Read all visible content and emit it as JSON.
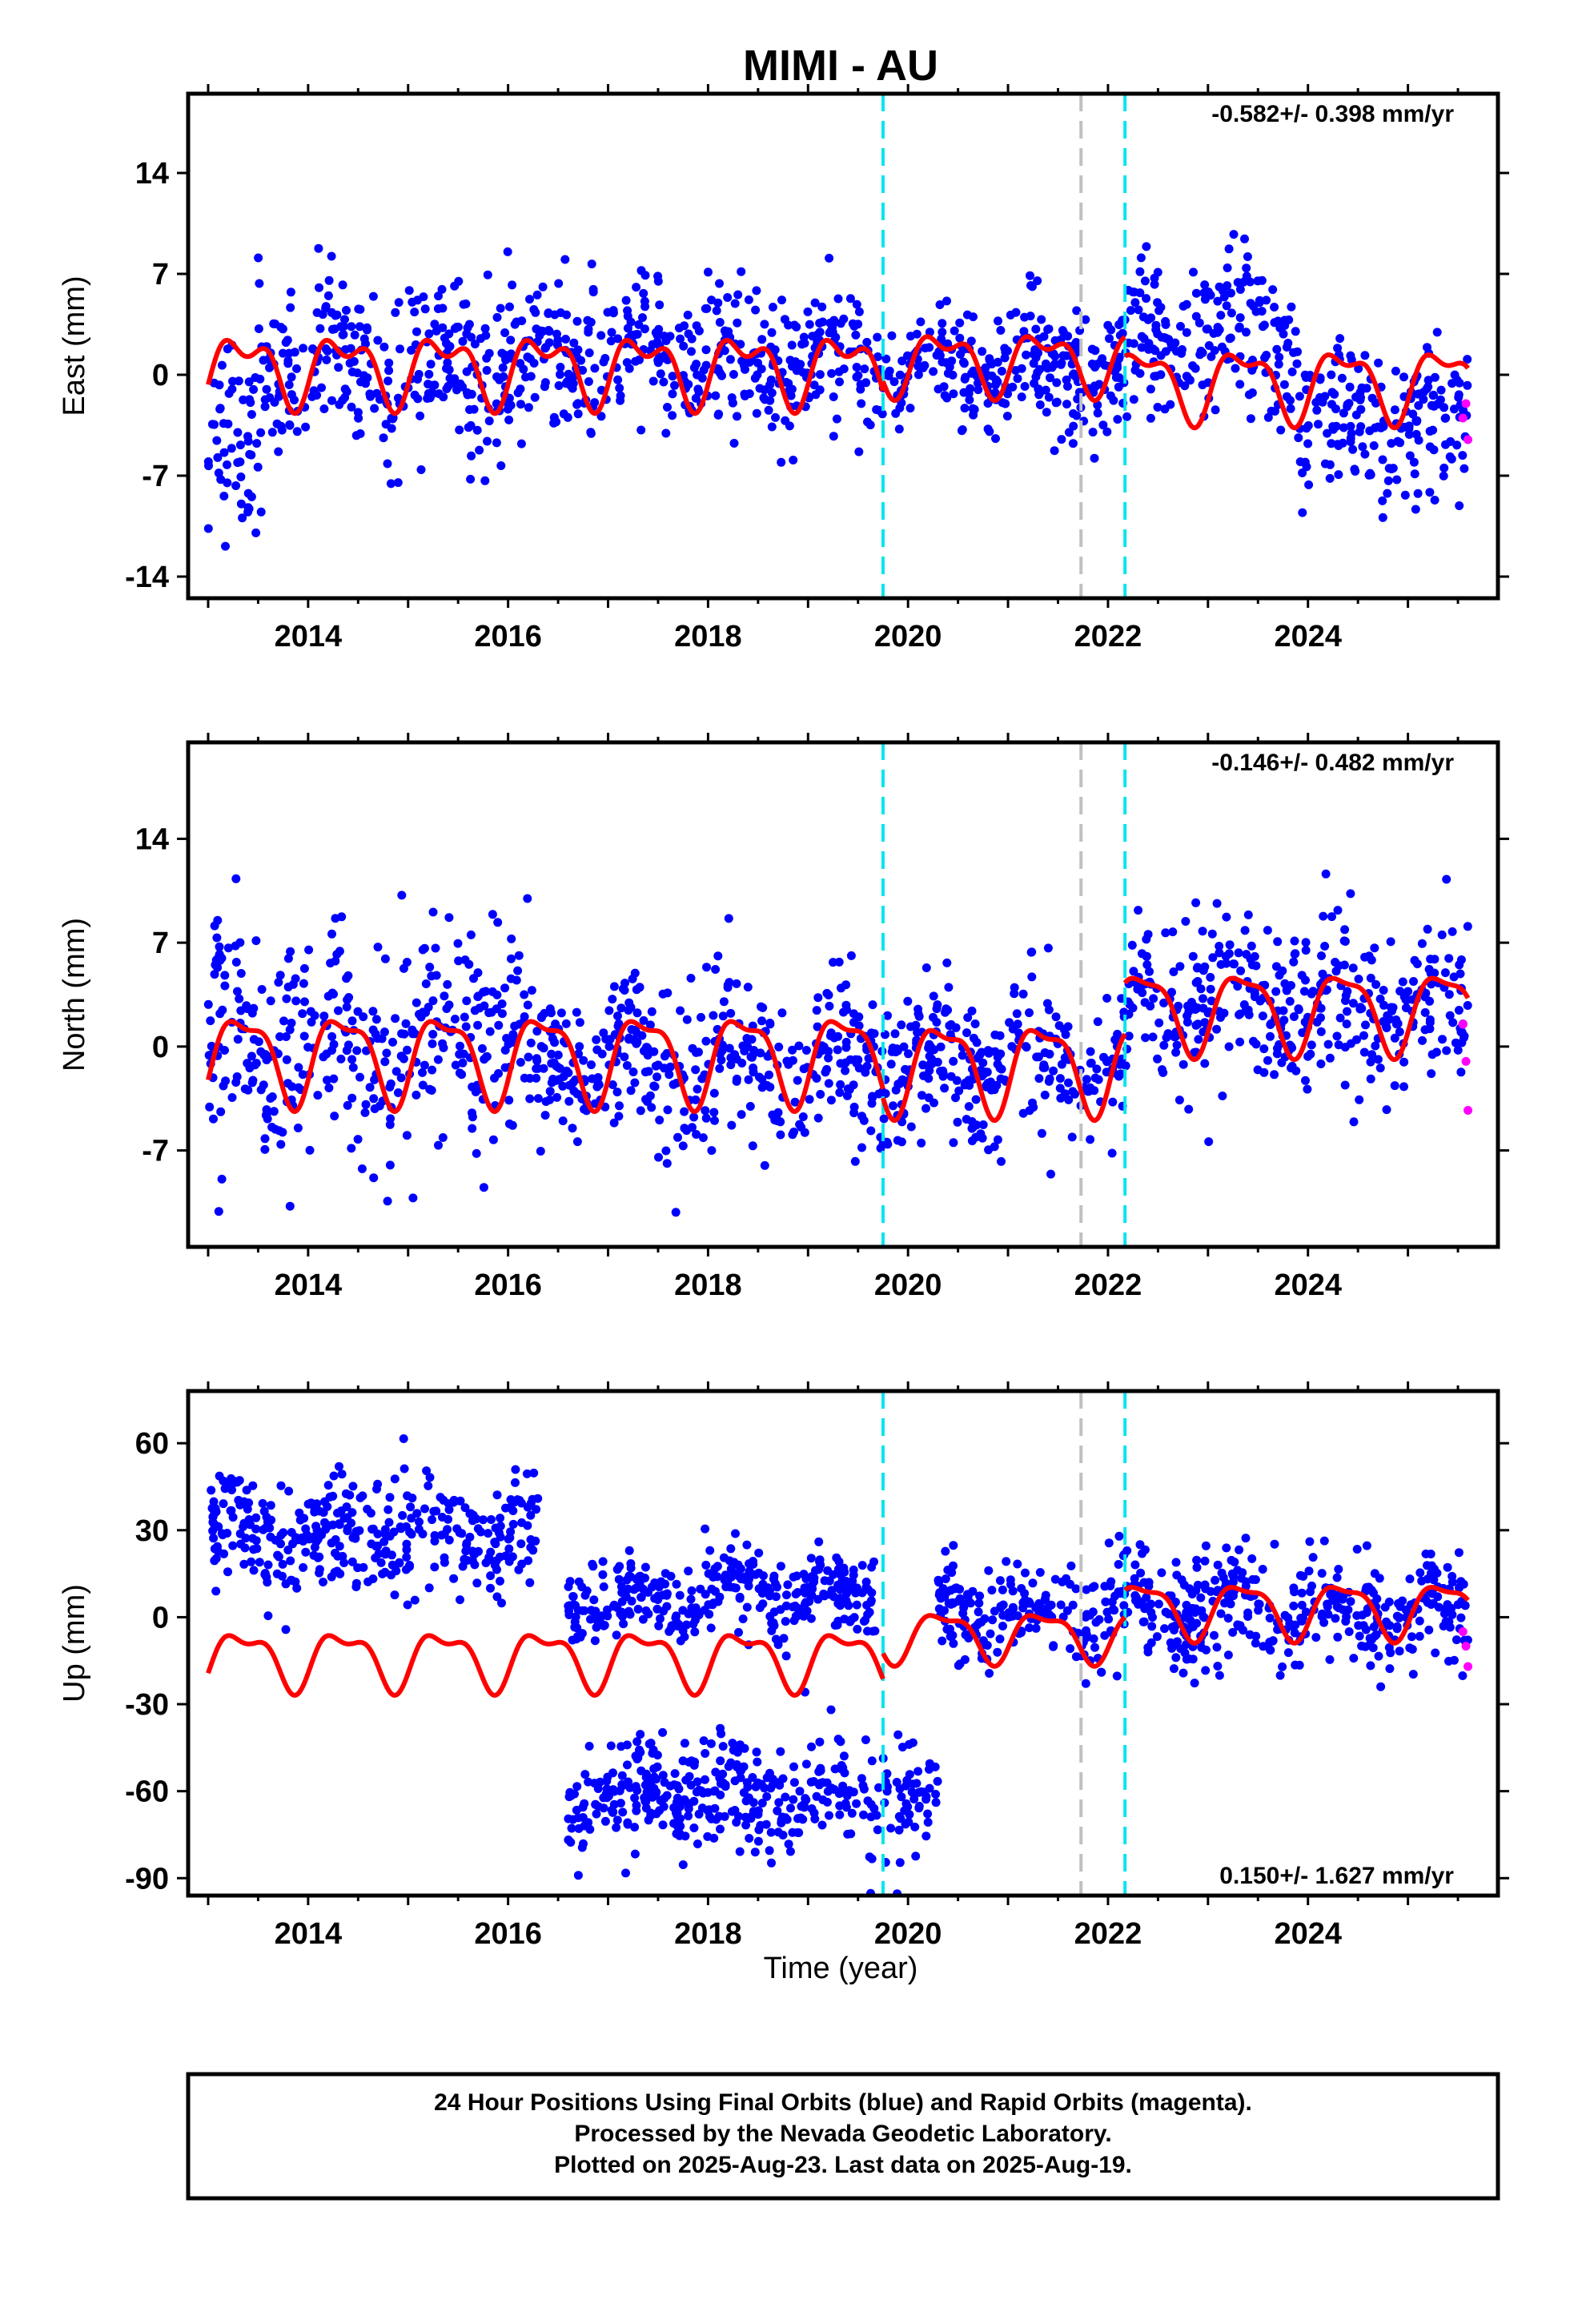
{
  "title": "MIMI - AU",
  "x_axis_title": "Time (year)",
  "colors": {
    "final_points": "#0000ff",
    "rapid_points": "#ff00ff",
    "model_curve": "#ff0000",
    "event_cyan": "#00e5ee",
    "event_grey": "#c0c0c0"
  },
  "footer": {
    "line1": "24 Hour Positions Using Final Orbits (blue) and Rapid Orbits (magenta).",
    "line2": "Processed by the Nevada Geodetic Laboratory.",
    "line3": "Plotted on 2025-Aug-23. Last data on 2025-Aug-19."
  },
  "chart_data": [
    {
      "type": "scatter",
      "component": "east",
      "ylabel": "East (mm)",
      "xlim": [
        2012.8,
        2025.9
      ],
      "ylim": [
        -15.5,
        19.5
      ],
      "xticks": [
        "2014",
        "2016",
        "2018",
        "2020",
        "2022",
        "2024"
      ],
      "yticks": [
        "14",
        "7",
        "0",
        "-7",
        "-14"
      ],
      "ytick_values": [
        14,
        7,
        0,
        -7,
        -14
      ],
      "rate_label": "-0.582+/- 0.398 mm/yr",
      "rate_label_position": "top-right",
      "event_lines": [
        {
          "x": 2019.75,
          "color": "cyan"
        },
        {
          "x": 2021.73,
          "color": "grey"
        },
        {
          "x": 2022.17,
          "color": "cyan"
        }
      ],
      "segments": [
        {
          "start": 2013.0,
          "end": 2019.75,
          "offset": 0.5,
          "amp1": 2.0,
          "amp2": 1.2
        },
        {
          "start": 2019.75,
          "end": 2022.17,
          "offset": 1.0,
          "amp1": 1.8,
          "amp2": 1.0
        },
        {
          "start": 2022.17,
          "end": 2025.6,
          "offset": -0.5,
          "amp1": 2.2,
          "amp2": 1.0
        }
      ],
      "final_series_approx": [
        {
          "period": "2013.0-2013.5",
          "mean": -5.0,
          "spread": 5.0
        },
        {
          "period": "2013.5-2016.2",
          "mean": 0.5,
          "spread": 4.0
        },
        {
          "period": "2016.2-2019.7",
          "mean": 1.0,
          "spread": 3.5
        },
        {
          "period": "2019.7-2022.2",
          "mean": 0.5,
          "spread": 3.0
        },
        {
          "period": "2022.2-2023.9",
          "mean": 2.0,
          "spread": 4.0
        },
        {
          "period": "2023.9-2025.6",
          "mean": -3.5,
          "spread": 3.5
        }
      ],
      "rapid_points": [
        {
          "x": 2025.55,
          "y": -3.0
        },
        {
          "x": 2025.58,
          "y": -2.0
        },
        {
          "x": 2025.6,
          "y": -4.5
        }
      ]
    },
    {
      "type": "scatter",
      "component": "north",
      "ylabel": "North (mm)",
      "xlim": [
        2012.8,
        2025.9
      ],
      "ylim": [
        -13.5,
        20.5
      ],
      "xticks": [
        "2014",
        "2016",
        "2018",
        "2020",
        "2022",
        "2024"
      ],
      "yticks": [
        "14",
        "7",
        "0",
        "-7"
      ],
      "ytick_values": [
        14,
        7,
        0,
        -7
      ],
      "rate_label": "-0.146+/- 0.482 mm/yr",
      "rate_label_position": "top-right",
      "event_lines": [
        {
          "x": 2019.75,
          "color": "cyan"
        },
        {
          "x": 2021.73,
          "color": "grey"
        },
        {
          "x": 2022.17,
          "color": "cyan"
        }
      ],
      "segments": [
        {
          "start": 2013.0,
          "end": 2019.75,
          "offset": -0.6,
          "amp1": 2.8,
          "amp2": 1.0
        },
        {
          "start": 2019.75,
          "end": 2022.17,
          "offset": -1.2,
          "amp1": 2.8,
          "amp2": 1.0
        },
        {
          "start": 2022.17,
          "end": 2025.6,
          "offset": 2.5,
          "amp1": 2.6,
          "amp2": 0.8
        }
      ],
      "final_series_approx": [
        {
          "period": "2013.0-2016.2",
          "mean": 0.5,
          "spread": 5.5
        },
        {
          "period": "2016.2-2019.7",
          "mean": -1.5,
          "spread": 4.0
        },
        {
          "period": "2019.7-2022.2",
          "mean": -1.0,
          "spread": 3.5
        },
        {
          "period": "2022.2-2025.6",
          "mean": 3.0,
          "spread": 4.0
        }
      ],
      "rapid_points": [
        {
          "x": 2025.55,
          "y": 1.5
        },
        {
          "x": 2025.58,
          "y": -1.0
        },
        {
          "x": 2025.6,
          "y": -4.3
        }
      ]
    },
    {
      "type": "scatter",
      "component": "up",
      "ylabel": "Up (mm)",
      "xlim": [
        2012.8,
        2025.9
      ],
      "ylim": [
        -96,
        78
      ],
      "xticks": [
        "2014",
        "2016",
        "2018",
        "2020",
        "2022",
        "2024"
      ],
      "yticks": [
        "60",
        "30",
        "0",
        "-30",
        "-60",
        "-90"
      ],
      "ytick_values": [
        60,
        30,
        0,
        -30,
        -60,
        -90
      ],
      "rate_label": "0.150+/- 1.627 mm/yr",
      "rate_label_position": "bottom-right",
      "event_lines": [
        {
          "x": 2019.75,
          "color": "cyan"
        },
        {
          "x": 2021.73,
          "color": "grey"
        },
        {
          "x": 2022.17,
          "color": "cyan"
        }
      ],
      "segments": [
        {
          "start": 2013.0,
          "end": 2019.75,
          "offset": -14.0,
          "amp1": 9.0,
          "amp2": 4.0
        },
        {
          "start": 2019.75,
          "end": 2022.17,
          "offset": -6.0,
          "amp1": 8.0,
          "amp2": 3.0
        },
        {
          "start": 2022.17,
          "end": 2025.6,
          "offset": 3.0,
          "amp1": 9.0,
          "amp2": 3.0
        }
      ],
      "final_series_approx": [
        {
          "period": "2013.0-2016.3",
          "mean": 28.0,
          "spread": 14.0
        },
        {
          "period": "2016.6-2017.2",
          "mean": 5.0,
          "spread": 10.0
        },
        {
          "period": "2016.6-2020.3",
          "mean": -62.0,
          "spread": 14.0
        },
        {
          "period": "2017.2-2019.7 upper",
          "mean": 8.0,
          "spread": 10.0
        },
        {
          "period": "2020.3-2025.6",
          "mean": 2.0,
          "spread": 13.0
        }
      ],
      "rapid_points": [
        {
          "x": 2025.55,
          "y": -5.0
        },
        {
          "x": 2025.58,
          "y": -10.0
        },
        {
          "x": 2025.6,
          "y": -17.0
        }
      ]
    }
  ]
}
